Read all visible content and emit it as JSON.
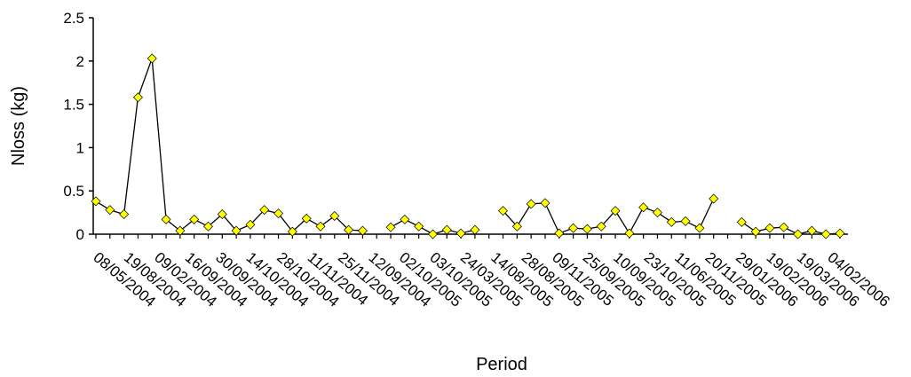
{
  "chart_data": {
    "type": "line",
    "xlabel": "Period",
    "ylabel": "Nloss (kg)",
    "ylim": [
      0,
      2.5
    ],
    "yticks": [
      0,
      0.5,
      1,
      1.5,
      2,
      2.5
    ],
    "ytick_labels": [
      "0",
      "0.5",
      "1",
      "1.5",
      "2",
      "2.5"
    ],
    "grid": false,
    "legend": "none",
    "x_tick_labels": [
      "08/05/2004",
      "19/08/2004",
      "09/02/2004",
      "16/09/2004",
      "30/09/2004",
      "14/10/2004",
      "28/10/2004",
      "11/11/2004",
      "25/11/2004",
      "12/09/2004",
      "02/10/2005",
      "03/10/2005",
      "24/03/2005",
      "14/08/2005",
      "28/08/2005",
      "09/11/2005",
      "25/09/2005",
      "10/09/2005",
      "23/10/2005",
      "11/06/2005",
      "20/11/2005",
      "29/01/2006",
      "19/02/2006",
      "19/03/2006",
      "04/02/2006"
    ],
    "series": [
      {
        "marker_color": "#ffff00",
        "line_color": "#000000",
        "segments": [
          [
            0.38,
            0.28,
            0.23,
            1.58,
            2.03,
            0.17,
            0.04,
            0.17,
            0.09,
            0.23,
            0.04,
            0.11,
            0.28,
            0.24,
            0.03,
            0.18,
            0.09,
            0.21,
            0.05,
            0.04
          ],
          [
            0.08,
            0.17,
            0.09,
            0.0,
            0.05,
            0.01,
            0.05
          ],
          [
            0.27,
            0.09,
            0.35,
            0.36,
            0.01,
            0.07,
            0.06,
            0.09,
            0.27,
            0.01,
            0.31,
            0.25,
            0.14,
            0.15,
            0.07,
            0.41
          ],
          [
            0.14,
            0.03,
            0.07,
            0.08,
            0.0,
            0.04,
            0.0,
            0.01
          ]
        ],
        "segment_start_index": [
          0,
          21,
          29,
          46
        ]
      }
    ],
    "x_slot_count": 54
  }
}
